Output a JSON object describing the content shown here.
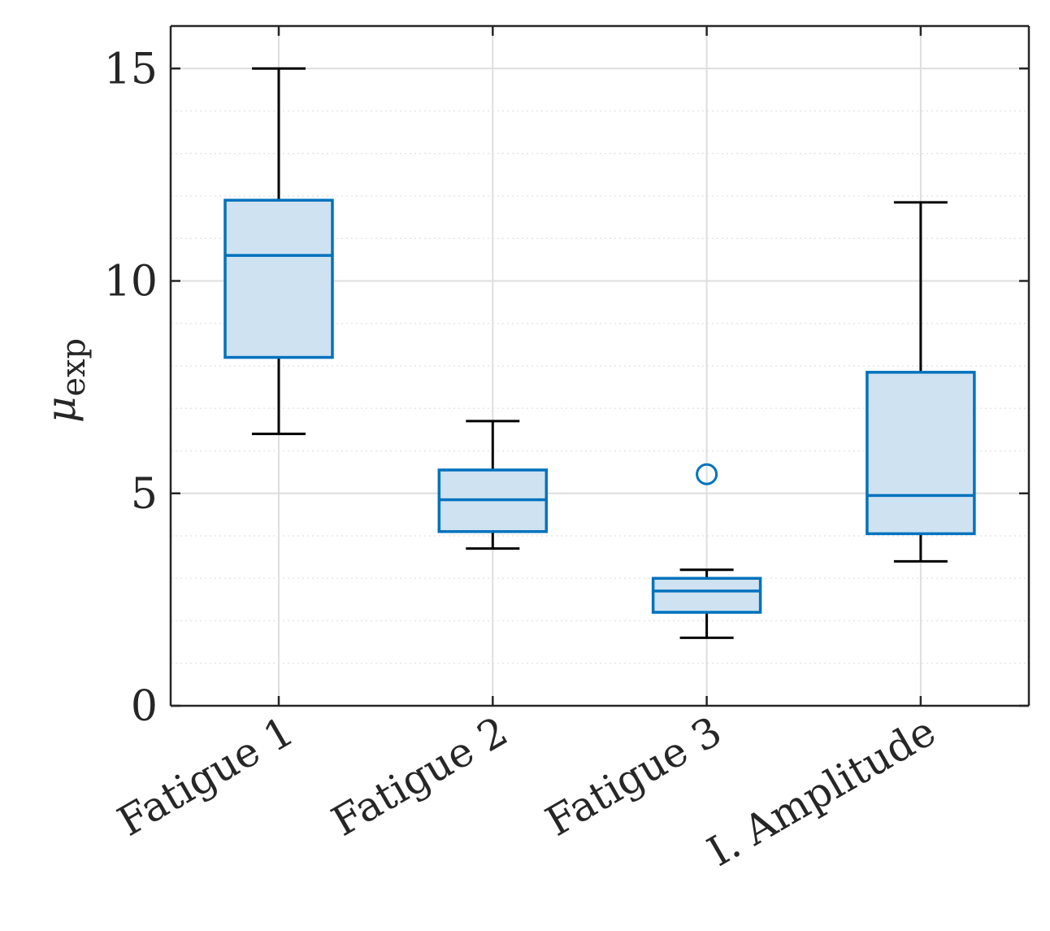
{
  "chart_data": {
    "type": "boxplot",
    "title": "",
    "xlabel": "",
    "ylabel": {
      "main": "μ",
      "subscript": "exp"
    },
    "ylim": [
      0,
      16
    ],
    "yticks": [
      0,
      5,
      10,
      15
    ],
    "yminor_step": 1,
    "grid": true,
    "categories": [
      "Fatigue 1",
      "Fatigue 2",
      "Fatigue 3",
      "I. Amplitude"
    ],
    "boxes": [
      {
        "label": "Fatigue 1",
        "whisker_low": 6.4,
        "q1": 8.2,
        "median": 10.6,
        "q3": 11.9,
        "whisker_high": 15.0,
        "outliers": []
      },
      {
        "label": "Fatigue 2",
        "whisker_low": 3.7,
        "q1": 4.1,
        "median": 4.85,
        "q3": 5.55,
        "whisker_high": 6.7,
        "outliers": []
      },
      {
        "label": "Fatigue 3",
        "whisker_low": 1.6,
        "q1": 2.2,
        "median": 2.7,
        "q3": 3.0,
        "whisker_high": 3.2,
        "outliers": [
          5.45
        ]
      },
      {
        "label": "I. Amplitude",
        "whisker_low": 3.4,
        "q1": 4.05,
        "median": 4.95,
        "q3": 7.85,
        "whisker_high": 11.85,
        "outliers": []
      }
    ],
    "colors": {
      "box_edge": "#0072BD",
      "box_fill": "#CFE2F1",
      "whisker": "#000000",
      "axis": "#262626",
      "grid_major": "#DEDEDE",
      "grid_minor": "#E6E6E6"
    }
  }
}
